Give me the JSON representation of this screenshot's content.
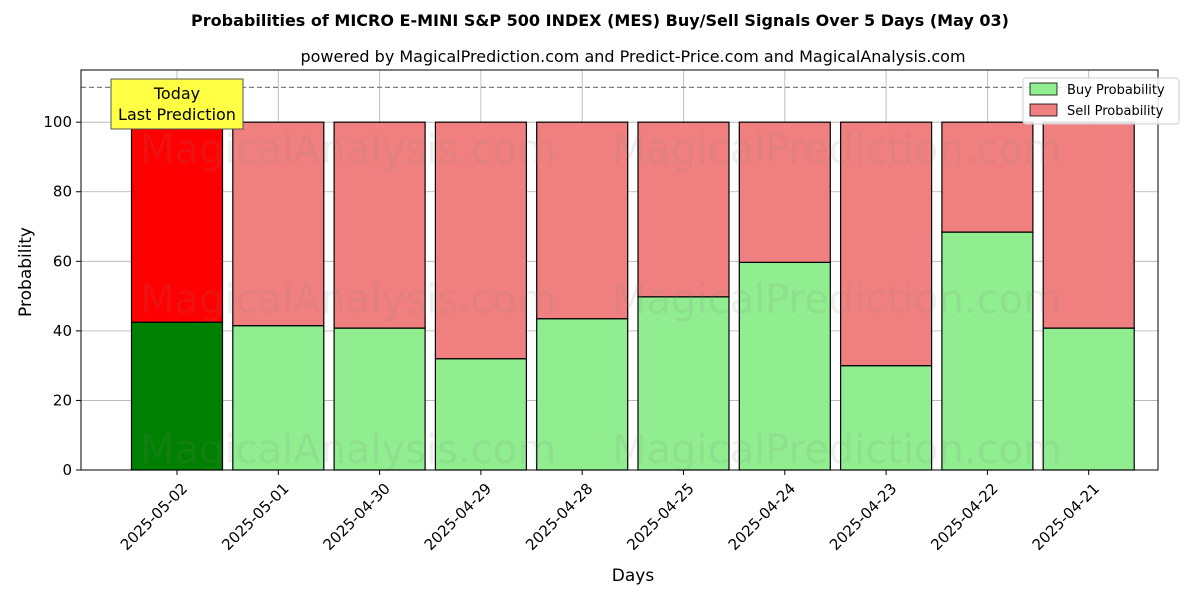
{
  "chart_data": {
    "type": "bar",
    "stacked": true,
    "title": "Probabilities of MICRO E-MINI S&P 500 INDEX (MES) Buy/Sell Signals Over 5 Days (May 03)",
    "subtitle": "powered by MagicalPrediction.com and Predict-Price.com and MagicalAnalysis.com",
    "xlabel": "Days",
    "ylabel": "Probability",
    "ylim": [
      0,
      115
    ],
    "yticks": [
      0,
      20,
      40,
      60,
      80,
      100
    ],
    "grid": true,
    "legend_position": "top-right",
    "categories": [
      "2025-05-02",
      "2025-05-01",
      "2025-04-30",
      "2025-04-29",
      "2025-04-28",
      "2025-04-25",
      "2025-04-24",
      "2025-04-23",
      "2025-04-22",
      "2025-04-21"
    ],
    "series": [
      {
        "name": "Buy Probability",
        "color": "#90ee90",
        "highlight_color": "#008000",
        "values": [
          42.5,
          41.5,
          40.8,
          32.0,
          43.5,
          49.8,
          59.7,
          30.0,
          68.4,
          40.8
        ]
      },
      {
        "name": "Sell Probability",
        "color": "#f08080",
        "highlight_color": "#ff0000",
        "values": [
          57.5,
          58.5,
          59.2,
          68.0,
          56.5,
          50.2,
          40.3,
          70.0,
          31.6,
          59.2
        ]
      }
    ],
    "reference_line": {
      "y": 110,
      "style": "dashed",
      "color": "#808080"
    },
    "annotation": {
      "lines": [
        "Today",
        "Last Prediction"
      ],
      "category_index": 0,
      "background": "#ffff44"
    },
    "watermarks": [
      "MagicalAnalysis.com",
      "MagicalPrediction.com"
    ]
  }
}
